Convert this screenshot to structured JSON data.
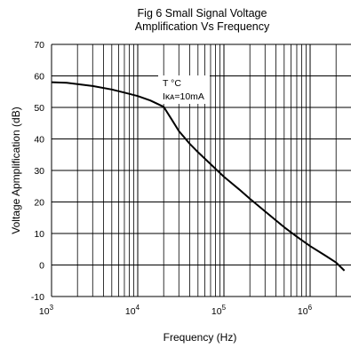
{
  "title_lines": [
    "Fig 6 Small Signal Voltage",
    "Amplification Vs Frequency"
  ],
  "chart_data": {
    "type": "line",
    "title": "Fig 6 Small Signal Voltage Amplification Vs Frequency",
    "xlabel": "Frequency (Hz)",
    "ylabel": "Voltage Apmplification (dB)",
    "x_scale": "log",
    "xlim": [
      1000,
      10000000
    ],
    "ylim": [
      -10,
      70
    ],
    "grid": true,
    "x_ticks": [
      {
        "base": "10",
        "exp": "3",
        "value": 1000
      },
      {
        "base": "10",
        "exp": "4",
        "value": 10000
      },
      {
        "base": "10",
        "exp": "5",
        "value": 100000
      },
      {
        "base": "10",
        "exp": "6",
        "value": 1000000
      },
      {
        "base": "10",
        "exp": "",
        "value": 10000000
      }
    ],
    "y_ticks": [
      "70",
      "60",
      "50",
      "40",
      "30",
      "20",
      "10",
      "0",
      "-10"
    ],
    "annotation": {
      "line1": "T      °C",
      "line2": "Iᴋᴀ=10mA"
    },
    "series": [
      {
        "x": [
          1000,
          1500,
          2000,
          3000,
          5000,
          7000,
          10000,
          14000,
          20000,
          25000,
          30000,
          40000,
          50000,
          70000,
          100000,
          150000,
          200000,
          300000,
          500000,
          700000,
          1000000,
          1500000,
          2000000,
          2500000
        ],
        "y": [
          58,
          57.8,
          57.4,
          56.8,
          55.7,
          54.7,
          53.6,
          52.2,
          50.2,
          46,
          42.5,
          38.5,
          35.8,
          32,
          28,
          24,
          21,
          17,
          12,
          9,
          6,
          3,
          0.8,
          -1.8
        ]
      }
    ]
  }
}
